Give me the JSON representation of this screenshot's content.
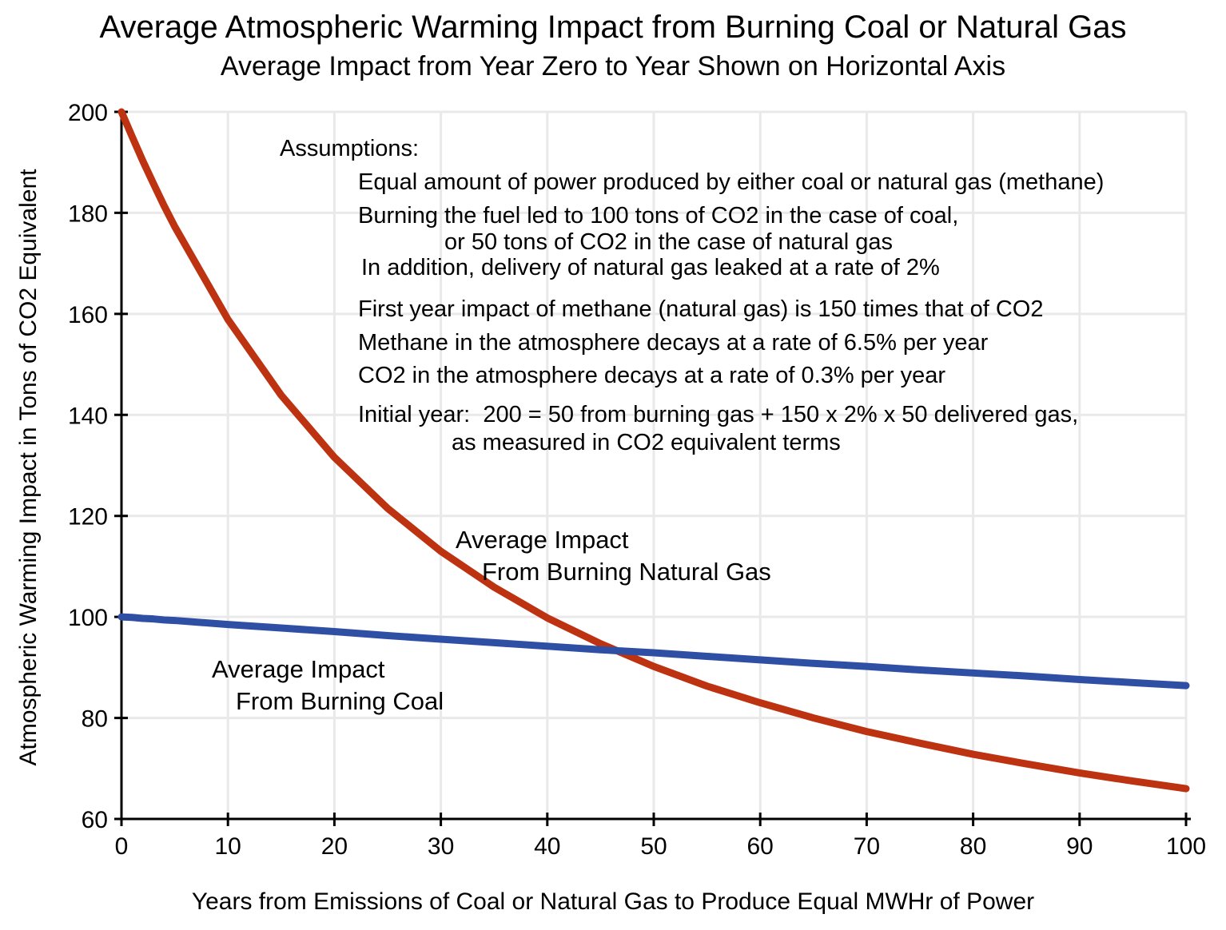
{
  "chart_data": {
    "type": "line",
    "title": "Average Atmospheric Warming Impact from Burning Coal or Natural Gas",
    "subtitle": "Average Impact from Year Zero to Year Shown on Horizontal Axis",
    "xlabel": "Years from Emissions of Coal or Natural Gas to Produce Equal MWHr of Power",
    "ylabel": "Atmospheric Warming Impact in Tons of CO2 Equivalent",
    "xlim": [
      0,
      100
    ],
    "ylim": [
      60,
      200
    ],
    "xticks": [
      0,
      10,
      20,
      30,
      40,
      50,
      60,
      70,
      80,
      90,
      100
    ],
    "yticks": [
      60,
      80,
      100,
      120,
      140,
      160,
      180,
      200
    ],
    "grid": true,
    "grid_color": "#E9E9E9",
    "axis_color": "#000000",
    "x": [
      0,
      1,
      2,
      3,
      4,
      5,
      10,
      15,
      20,
      25,
      30,
      35,
      40,
      45,
      50,
      55,
      60,
      65,
      70,
      75,
      80,
      85,
      90,
      95,
      100
    ],
    "series": [
      {
        "name": "Average Impact From Burning Natural Gas",
        "id": "gas-curve",
        "color": "#BD3211",
        "values": [
          200,
          195.1,
          190.3,
          185.8,
          181.4,
          177.3,
          158.9,
          143.9,
          131.6,
          121.5,
          113.0,
          105.9,
          99.8,
          94.7,
          90.2,
          86.3,
          83.0,
          80.0,
          77.3,
          75.0,
          72.8,
          70.9,
          69.1,
          67.5,
          66.0
        ]
      },
      {
        "name": "Average Impact From Burning Coal",
        "id": "coal-curve",
        "color": "#2F4FA5",
        "values": [
          100,
          99.9,
          99.7,
          99.6,
          99.4,
          99.3,
          98.5,
          97.8,
          97.1,
          96.3,
          95.6,
          94.9,
          94.2,
          93.5,
          92.9,
          92.2,
          91.5,
          90.8,
          90.2,
          89.5,
          88.9,
          88.3,
          87.6,
          87.0,
          86.4
        ]
      }
    ],
    "annotations": {
      "gas": {
        "line1": "Average Impact",
        "line2": "From Burning Natural Gas"
      },
      "coal": {
        "line1": "Average Impact",
        "line2": "From Burning Coal"
      }
    },
    "assumptions": {
      "heading": "Assumptions:",
      "lines": [
        "Equal amount of power produced by either coal or natural gas (methane)",
        "Burning the fuel led to 100 tons of CO2 in the case of coal,",
        "or 50 tons of CO2 in the case of natural gas",
        "In addition, delivery of natural gas leaked at a rate of 2%",
        "First year impact of methane (natural gas) is 150 times that of CO2",
        "Methane in the atmosphere decays at a rate of 6.5% per year",
        "CO2 in the atmosphere decays at a rate of 0.3% per year",
        "Initial year:  200 = 50 from burning gas + 150 x 2% x 50 delivered gas,",
        "as measured in CO2 equivalent terms"
      ]
    }
  }
}
